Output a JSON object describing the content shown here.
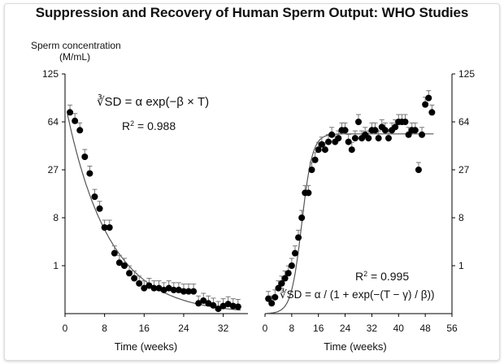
{
  "title": "Suppression  and Recovery of Human Sperm Output: WHO Studies",
  "y_label_line1": "Sperm concentration",
  "y_label_line2": "(M/mL)",
  "colors": {
    "points": "#000000",
    "curve": "#555555",
    "error_bars": "#777777"
  },
  "chart_data": [
    {
      "type": "scatter",
      "panel": "suppression",
      "xlabel": "Time (weeks)",
      "ylabel": "Sperm concentration (M/mL)",
      "y_scale": "cube-root",
      "xlim": [
        0,
        37
      ],
      "ylim": [
        0,
        125
      ],
      "x_ticks": [
        0,
        8,
        16,
        24,
        32
      ],
      "y_ticks": [
        1,
        8,
        27,
        64,
        125
      ],
      "grid": false,
      "formula": "∛SD = α exp(−β × T)",
      "r2_label": "R",
      "r2_exp": "2",
      "r2_value": " = 0.988",
      "x": [
        1,
        2,
        3,
        4,
        5,
        6,
        7,
        8,
        9,
        10,
        11,
        12,
        13,
        14,
        15,
        16,
        17,
        18,
        19,
        20,
        21,
        22,
        23,
        24,
        25,
        26,
        27,
        28,
        29,
        30,
        31,
        32,
        33,
        34,
        35
      ],
      "y": [
        74,
        65,
        56,
        35,
        25,
        14.5,
        10.5,
        5.8,
        5.8,
        2,
        1.2,
        1,
        0.6,
        0.4,
        0.25,
        0.15,
        0.2,
        0.15,
        0.15,
        0.12,
        0.15,
        0.12,
        0.12,
        0.1,
        0.1,
        0.1,
        0.01,
        0.02,
        0.01,
        0.005,
        0.001,
        0.004,
        0.008,
        0.004,
        0.003
      ],
      "fit": {
        "alpha": 4.4,
        "beta": 0.115
      }
    },
    {
      "type": "scatter",
      "panel": "recovery",
      "xlabel": "Time (weeks)",
      "ylabel": "Sperm concentration (M/mL)",
      "y_scale": "cube-root",
      "xlim": [
        0,
        56
      ],
      "ylim": [
        0,
        125
      ],
      "x_ticks": [
        0,
        8,
        16,
        24,
        32,
        40,
        48,
        56
      ],
      "y_ticks": [
        1,
        8,
        27,
        64,
        125
      ],
      "grid": false,
      "formula": "∛SD = α / (1 + exp(−(T − γ) / β))",
      "r2_label": "R",
      "r2_exp": "2",
      "r2_value": " = 0.995",
      "x": [
        1,
        2,
        3,
        4,
        5,
        6,
        7,
        8,
        9,
        10,
        11,
        12,
        13,
        14,
        15,
        16,
        17,
        18,
        19,
        20,
        21,
        22,
        23,
        24,
        25,
        26,
        27,
        28,
        29,
        30,
        31,
        32,
        33,
        34,
        35,
        36,
        37,
        38,
        39,
        40,
        41,
        42,
        43,
        44,
        45,
        46,
        47,
        48,
        49,
        50
      ],
      "y": [
        0.03,
        0.01,
        0.04,
        0.15,
        0.25,
        0.4,
        0.6,
        1,
        2,
        4,
        8,
        16,
        16,
        27,
        33,
        40,
        44,
        40,
        46,
        52,
        46,
        49,
        56,
        56,
        46,
        40,
        49,
        64,
        49,
        52,
        49,
        56,
        56,
        49,
        59,
        56,
        49,
        56,
        59,
        64,
        64,
        64,
        52,
        56,
        56,
        27,
        52,
        83,
        91,
        74
      ],
      "fit": {
        "alpha": 3.75,
        "beta": 1.6,
        "gamma": 11
      }
    }
  ]
}
